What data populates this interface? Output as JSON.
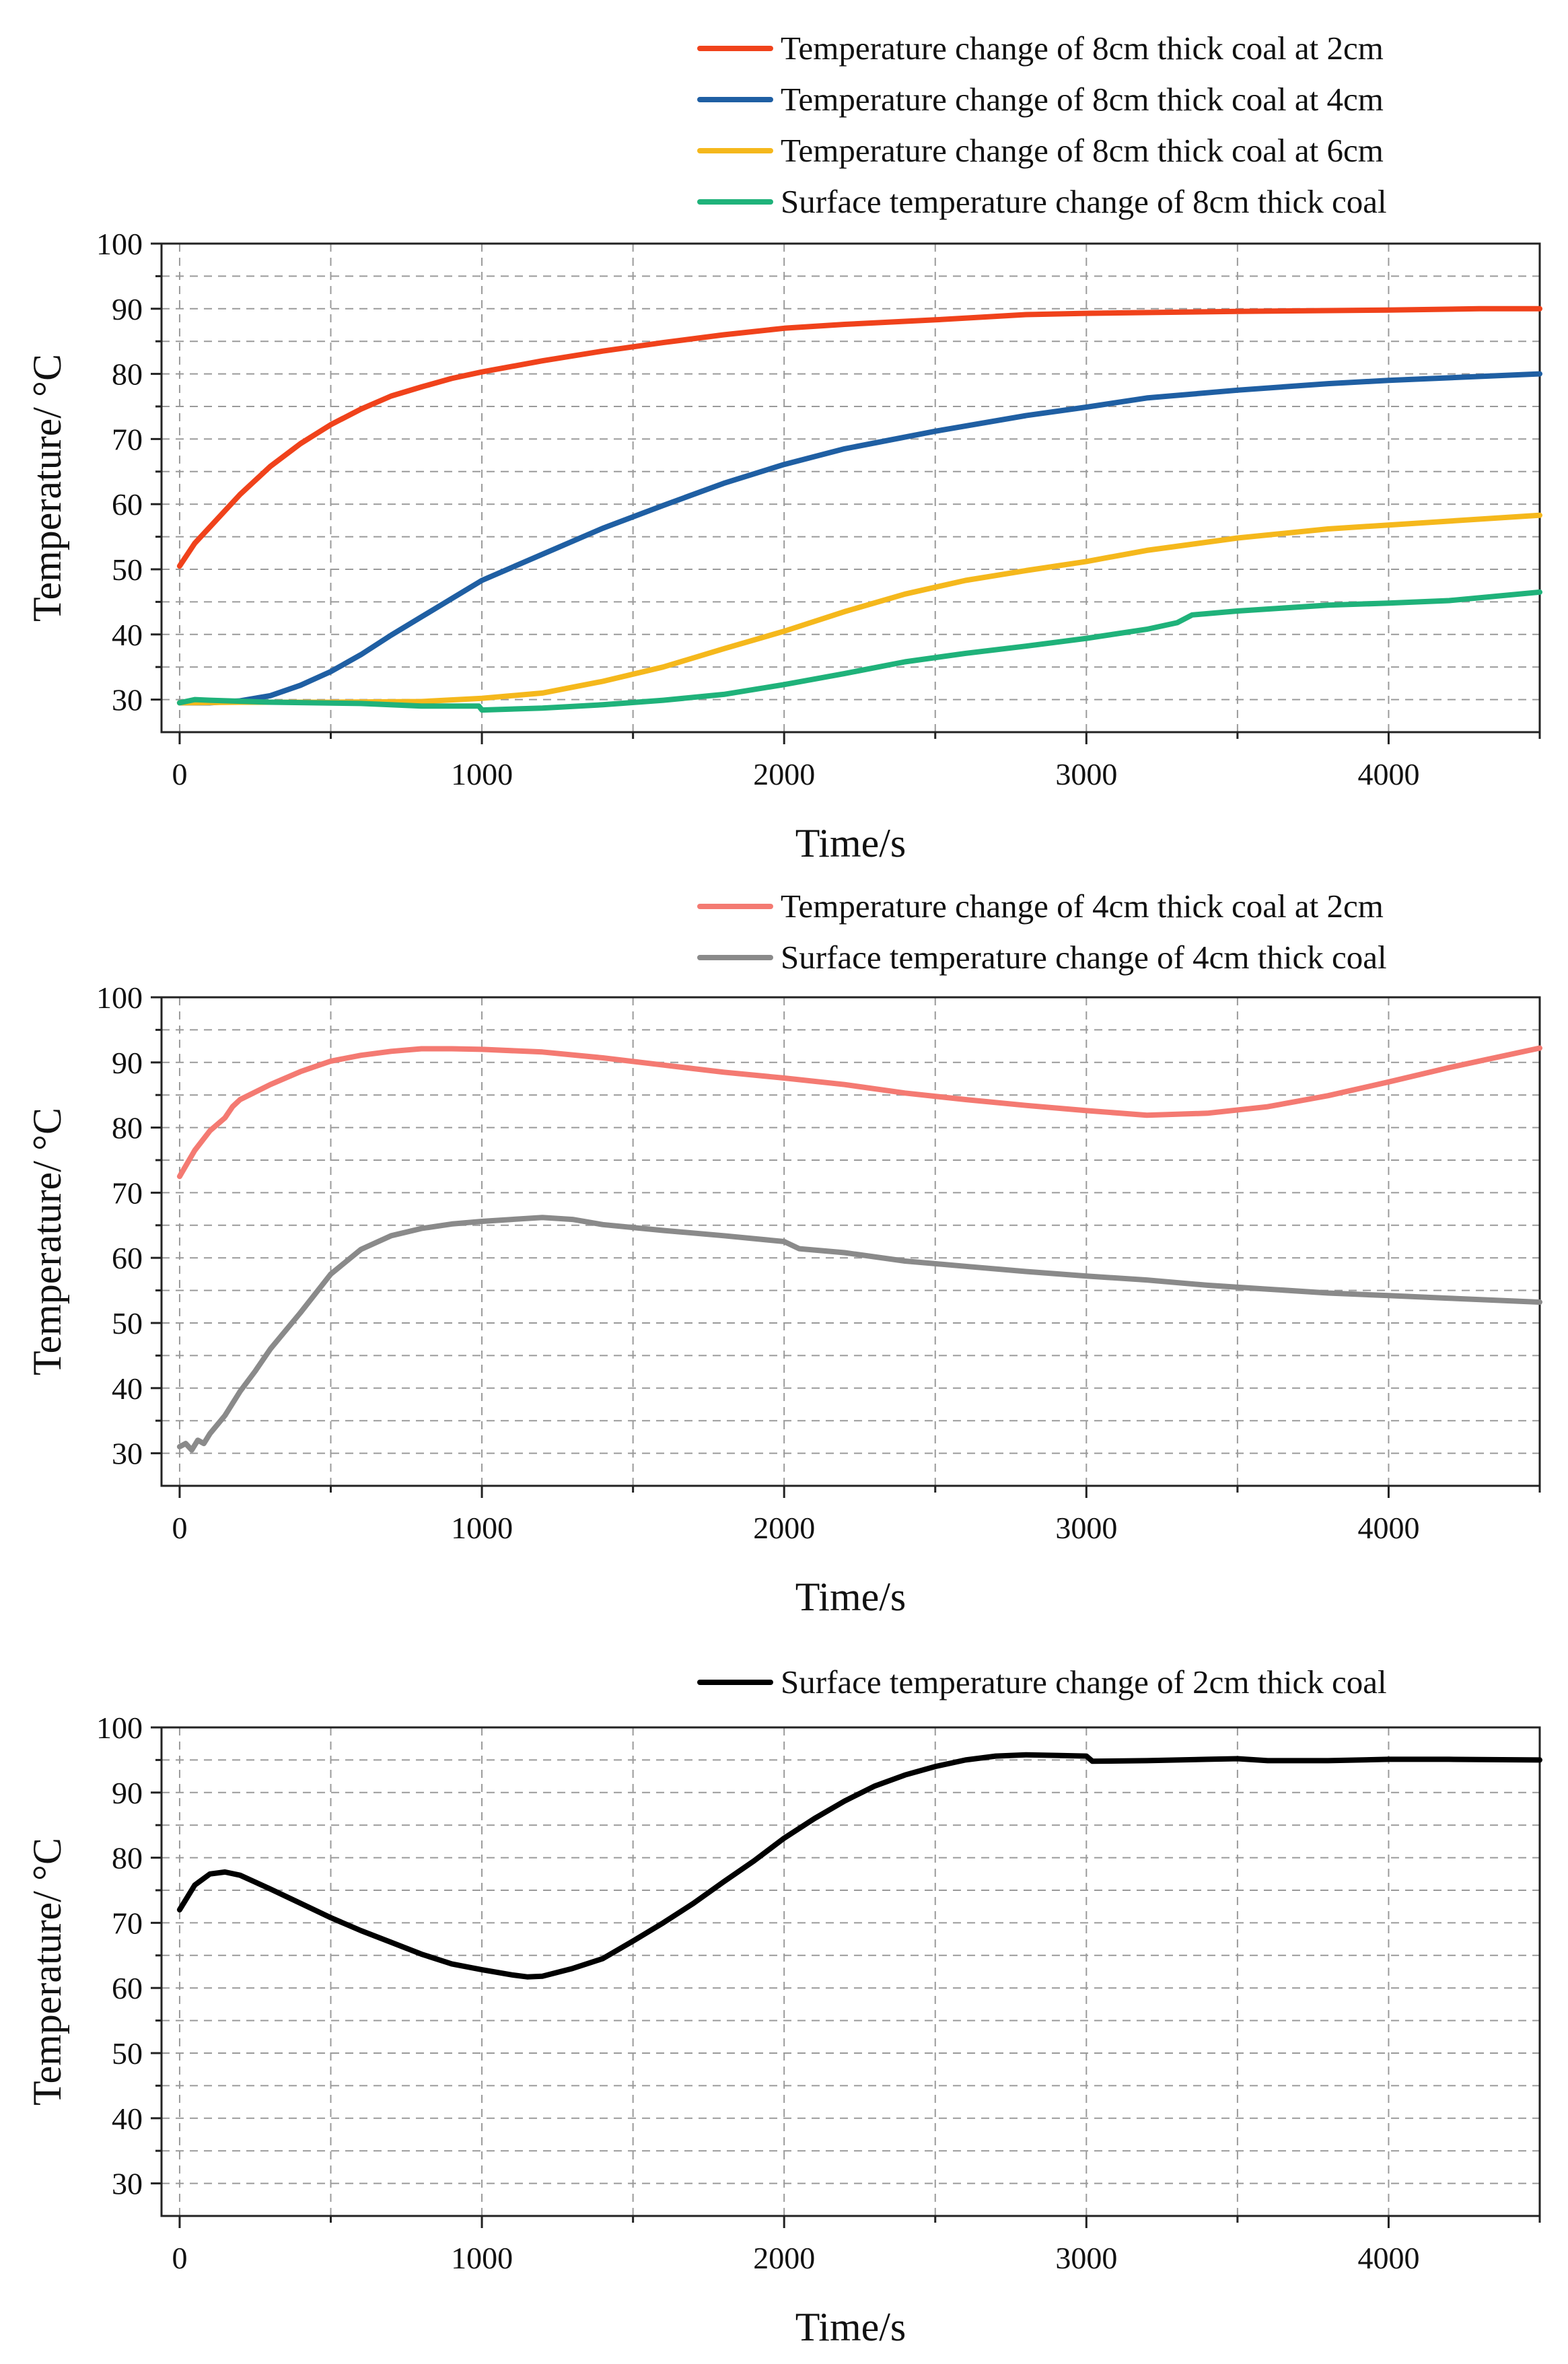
{
  "chart_data": [
    {
      "type": "line",
      "xlabel": "Time/s",
      "ylabel": "Temperature/ °C",
      "xlim": [
        -60,
        4500
      ],
      "ylim": [
        25,
        100
      ],
      "xticks": [
        0,
        1000,
        2000,
        3000,
        4000
      ],
      "yticks": [
        30,
        40,
        50,
        60,
        70,
        80,
        90,
        100
      ],
      "grid": true,
      "legend_position": "above-right",
      "series": [
        {
          "name": "Temperature change of 8cm thick coal at 2cm",
          "color": "#f0421b",
          "x": [
            0,
            50,
            100,
            200,
            300,
            400,
            500,
            600,
            700,
            800,
            900,
            1000,
            1200,
            1400,
            1600,
            1800,
            2000,
            2200,
            2500,
            2800,
            3000,
            3500,
            4000,
            4300,
            4500
          ],
          "y": [
            50.5,
            54,
            56.5,
            61.5,
            65.8,
            69.3,
            72.2,
            74.6,
            76.6,
            78,
            79.3,
            80.3,
            82,
            83.5,
            84.8,
            86,
            87,
            87.6,
            88.3,
            89.1,
            89.3,
            89.6,
            89.8,
            90,
            90
          ]
        },
        {
          "name": "Temperature change of 8cm thick coal at 4cm",
          "color": "#1f5fa3",
          "x": [
            0,
            100,
            200,
            300,
            400,
            500,
            600,
            700,
            800,
            900,
            1000,
            1200,
            1400,
            1600,
            1800,
            2000,
            2200,
            2500,
            2800,
            3000,
            3200,
            3500,
            3800,
            4000,
            4500
          ],
          "y": [
            29.5,
            29.5,
            29.8,
            30.6,
            32.2,
            34.3,
            36.9,
            39.9,
            42.7,
            45.5,
            48.3,
            52.3,
            56.3,
            59.8,
            63.2,
            66.1,
            68.5,
            71.2,
            73.6,
            74.9,
            76.3,
            77.5,
            78.5,
            79,
            80
          ]
        },
        {
          "name": "Temperature change of 8cm thick coal at 6cm",
          "color": "#f5b81c",
          "x": [
            0,
            200,
            500,
            800,
            1000,
            1200,
            1400,
            1600,
            1800,
            2000,
            2200,
            2400,
            2600,
            2800,
            3000,
            3200,
            3500,
            3800,
            4000,
            4500
          ],
          "y": [
            29.5,
            29.6,
            29.6,
            29.7,
            30.2,
            31,
            32.8,
            35,
            37.8,
            40.5,
            43.5,
            46.2,
            48.3,
            49.8,
            51.2,
            52.9,
            54.8,
            56.2,
            56.8,
            58.3
          ]
        },
        {
          "name": "Surface temperature change of 8cm thick coal",
          "color": "#1fb27a",
          "x": [
            0,
            50,
            100,
            300,
            600,
            800,
            990,
            1000,
            1200,
            1400,
            1600,
            1800,
            2000,
            2200,
            2400,
            2600,
            2800,
            3000,
            3200,
            3300,
            3350,
            3500,
            3800,
            4000,
            4200,
            4500
          ],
          "y": [
            29.5,
            30,
            29.9,
            29.6,
            29.4,
            29,
            29,
            28.4,
            28.7,
            29.2,
            29.9,
            30.8,
            32.3,
            34,
            35.8,
            37.1,
            38.2,
            39.4,
            40.8,
            41.8,
            43,
            43.6,
            44.5,
            44.8,
            45.2,
            46.5
          ]
        }
      ]
    },
    {
      "type": "line",
      "xlabel": "Time/s",
      "ylabel": "Temperature/ °C",
      "xlim": [
        -60,
        4500
      ],
      "ylim": [
        25,
        100
      ],
      "xticks": [
        0,
        1000,
        2000,
        3000,
        4000
      ],
      "yticks": [
        30,
        40,
        50,
        60,
        70,
        80,
        90,
        100
      ],
      "grid": true,
      "legend_position": "above-right",
      "series": [
        {
          "name": "Temperature change of 4cm thick coal at 2cm",
          "color": "#f47a72",
          "x": [
            0,
            50,
            100,
            150,
            175,
            200,
            300,
            400,
            500,
            600,
            700,
            800,
            900,
            1000,
            1200,
            1400,
            1600,
            1800,
            2000,
            2200,
            2400,
            2600,
            2800,
            3000,
            3200,
            3400,
            3600,
            3800,
            4000,
            4200,
            4500
          ],
          "y": [
            72.5,
            76.5,
            79.5,
            81.5,
            83.2,
            84.3,
            86.6,
            88.6,
            90.2,
            91.1,
            91.7,
            92.1,
            92.1,
            92,
            91.6,
            90.7,
            89.6,
            88.5,
            87.6,
            86.6,
            85.3,
            84.3,
            83.4,
            82.6,
            81.9,
            82.2,
            83.2,
            84.9,
            87,
            89.2,
            92.2
          ]
        },
        {
          "name": "Surface temperature change of  4cm thick coal",
          "color": "#8a8a8a",
          "x": [
            0,
            20,
            40,
            60,
            80,
            100,
            150,
            200,
            250,
            300,
            400,
            500,
            600,
            700,
            800,
            900,
            1000,
            1100,
            1200,
            1300,
            1400,
            1600,
            1800,
            2000,
            2050,
            2200,
            2400,
            2600,
            2800,
            3000,
            3200,
            3400,
            3600,
            3800,
            4000,
            4200,
            4500
          ],
          "y": [
            31,
            31.5,
            30.5,
            32,
            31.5,
            33,
            35.8,
            39.5,
            42.6,
            46,
            51.6,
            57.5,
            61.3,
            63.4,
            64.5,
            65.2,
            65.6,
            65.9,
            66.2,
            65.9,
            65.1,
            64.2,
            63.4,
            62.5,
            61.4,
            60.8,
            59.5,
            58.7,
            57.9,
            57.2,
            56.6,
            55.8,
            55.2,
            54.6,
            54.2,
            53.8,
            53.2
          ]
        }
      ]
    },
    {
      "type": "line",
      "xlabel": "Time/s",
      "ylabel": "Temperature/ °C",
      "xlim": [
        -60,
        4500
      ],
      "ylim": [
        25,
        100
      ],
      "xticks": [
        0,
        1000,
        2000,
        3000,
        4000
      ],
      "yticks": [
        30,
        40,
        50,
        60,
        70,
        80,
        90,
        100
      ],
      "grid": true,
      "legend_position": "above-right",
      "series": [
        {
          "name": "Surface temperature change of 2cm thick coal",
          "color": "#000000",
          "x": [
            0,
            50,
            100,
            150,
            200,
            300,
            400,
            500,
            600,
            700,
            800,
            900,
            1000,
            1100,
            1150,
            1200,
            1300,
            1400,
            1500,
            1600,
            1700,
            1800,
            1900,
            2000,
            2100,
            2200,
            2300,
            2400,
            2500,
            2600,
            2700,
            2800,
            2900,
            3000,
            3020,
            3200,
            3400,
            3500,
            3600,
            3800,
            4000,
            4200,
            4500
          ],
          "y": [
            72,
            75.8,
            77.5,
            77.8,
            77.3,
            75.2,
            73,
            70.8,
            68.8,
            67,
            65.2,
            63.7,
            62.8,
            62,
            61.7,
            61.8,
            63,
            64.5,
            67.2,
            70,
            73,
            76.3,
            79.5,
            83,
            86,
            88.7,
            91,
            92.7,
            94,
            95,
            95.6,
            95.8,
            95.7,
            95.6,
            94.8,
            94.9,
            95.1,
            95.2,
            94.9,
            94.9,
            95.1,
            95.1,
            95
          ]
        }
      ]
    }
  ]
}
